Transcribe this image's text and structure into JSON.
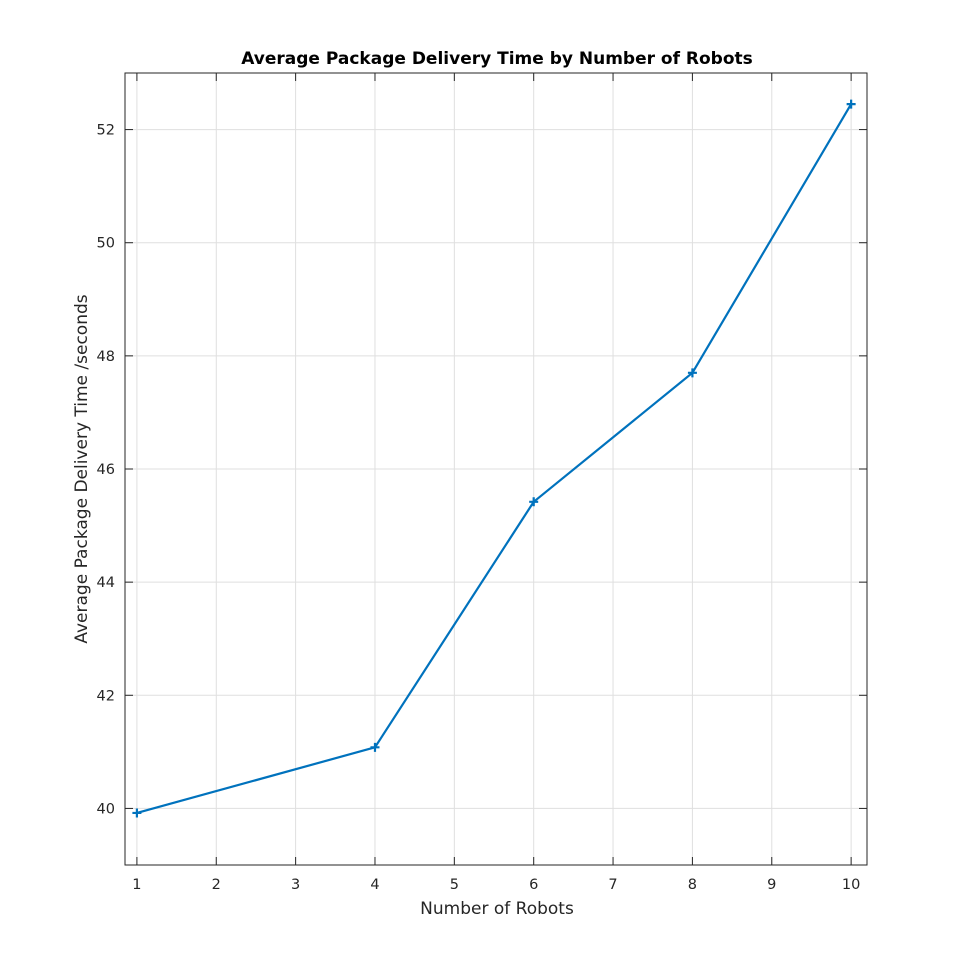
{
  "chart_data": {
    "type": "line",
    "title": "Average Package Delivery Time by Number of Robots",
    "xlabel": "Number of Robots",
    "ylabel": "Average Package Delivery Time /seconds",
    "x": [
      1,
      4,
      6,
      8,
      10
    ],
    "xlim": [
      0.85,
      10.2
    ],
    "ylim": [
      39.0,
      53.0
    ],
    "xticks": [
      1,
      2,
      3,
      4,
      5,
      6,
      7,
      8,
      9,
      10
    ],
    "yticks": [
      40,
      42,
      44,
      46,
      48,
      50,
      52
    ],
    "grid": true,
    "marker": "plus",
    "series": [
      {
        "values": [
          39.92,
          41.08,
          45.42,
          47.7,
          52.45
        ],
        "color": "#0072bd"
      }
    ]
  }
}
